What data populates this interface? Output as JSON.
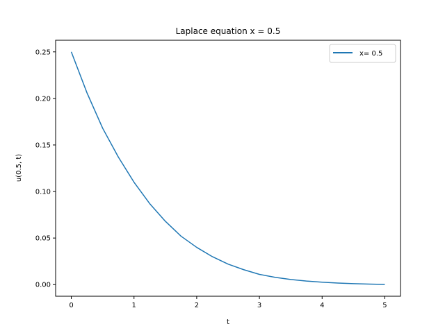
{
  "chart_data": {
    "type": "line",
    "title": "Laplace equation x = 0.5",
    "xlabel": "t",
    "ylabel": "u(0.5, t)",
    "xlim": [
      -0.25,
      5.25
    ],
    "ylim": [
      -0.0125,
      0.2625
    ],
    "x_ticks": [
      0,
      1,
      2,
      3,
      4,
      5
    ],
    "x_tick_labels": [
      "0",
      "1",
      "2",
      "3",
      "4",
      "5"
    ],
    "y_ticks": [
      0.0,
      0.05,
      0.1,
      0.15,
      0.2,
      0.25
    ],
    "y_tick_labels": [
      "0.00",
      "0.05",
      "0.10",
      "0.15",
      "0.20",
      "0.25"
    ],
    "grid": false,
    "legend_position": "top-right",
    "series": [
      {
        "name": "x= 0.5",
        "color": "#1f77b4",
        "x": [
          0,
          0.25,
          0.5,
          0.75,
          1.0,
          1.25,
          1.5,
          1.75,
          2.0,
          2.25,
          2.5,
          2.75,
          3.0,
          3.25,
          3.5,
          3.75,
          4.0,
          4.25,
          4.5,
          4.75,
          5.0
        ],
        "y": [
          0.25,
          0.206,
          0.168,
          0.137,
          0.11,
          0.087,
          0.068,
          0.052,
          0.04,
          0.03,
          0.022,
          0.016,
          0.011,
          0.0078,
          0.0055,
          0.0038,
          0.0026,
          0.0017,
          0.001,
          0.0005,
          0.0002
        ]
      }
    ]
  }
}
